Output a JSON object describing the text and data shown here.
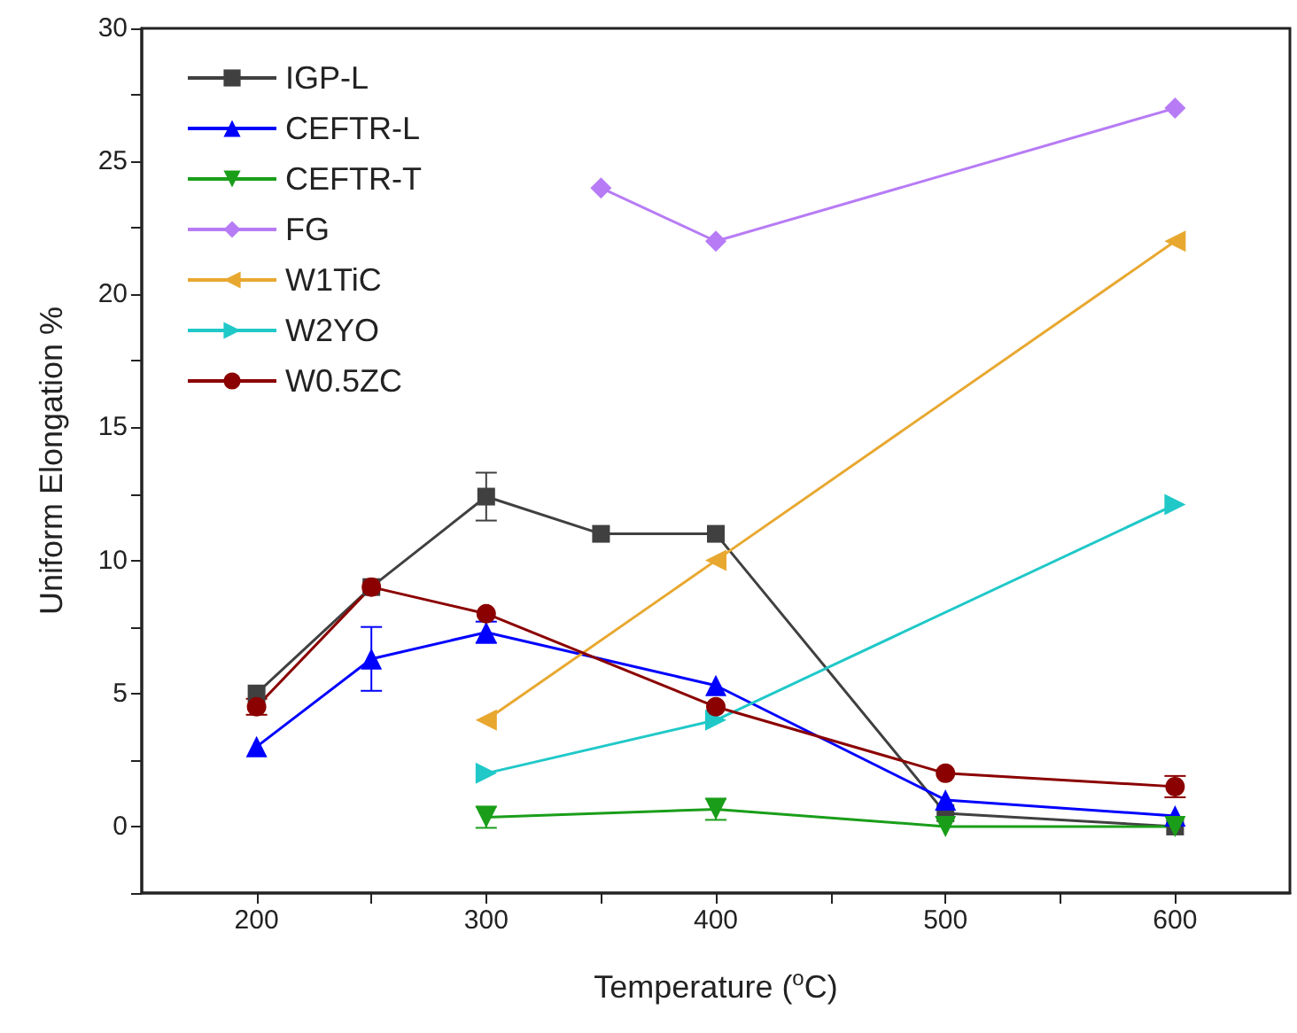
{
  "chart_data": {
    "type": "line",
    "xlabel": "Temperature ($^{o}$C)",
    "ylabel": "Uniform Elongation %",
    "xlim": [
      150,
      650
    ],
    "xticks": [
      200,
      {
        "value": 250,
        "label": null
      },
      300,
      {
        "value": 350,
        "label": null
      },
      400,
      {
        "value": 450,
        "label": null
      },
      500,
      {
        "value": 550,
        "label": null
      },
      600
    ],
    "ylim": [
      -2.5,
      30
    ],
    "yticks": [
      {
        "value": -2.5,
        "label": null
      },
      0,
      {
        "value": 2.5,
        "label": null
      },
      5,
      {
        "value": 7.5,
        "label": null
      },
      10,
      {
        "value": 12.5,
        "label": null
      },
      15,
      {
        "value": 17.5,
        "label": null
      },
      20,
      {
        "value": 22.5,
        "label": null
      },
      25,
      {
        "value": 27.5,
        "label": null
      },
      30
    ],
    "grid": false,
    "legend": "top left",
    "series": [
      {
        "name": "IGP-L",
        "color": "#404040",
        "marker": "square",
        "x": [
          200,
          250,
          300,
          350,
          400,
          500,
          600
        ],
        "values": [
          5,
          9,
          12.4,
          11,
          11,
          0.5,
          0
        ],
        "errors": [
          null,
          null,
          0.9,
          null,
          null,
          null,
          null
        ]
      },
      {
        "name": "CEFTR-L",
        "color": "#0000ff",
        "marker": "triangle",
        "x": [
          200,
          250,
          300,
          400,
          500,
          600
        ],
        "values": [
          3,
          6.3,
          7.3,
          5.3,
          1,
          0.4
        ],
        "errors": [
          null,
          1.2,
          0.4,
          null,
          null,
          null
        ]
      },
      {
        "name": "CEFTR-T",
        "color": "#1a9e1a",
        "marker": "triangle-down",
        "x": [
          300,
          400,
          500,
          600
        ],
        "values": [
          0.35,
          0.65,
          0,
          0
        ],
        "errors": [
          0.4,
          0.4,
          null,
          null
        ]
      },
      {
        "name": "FG",
        "color": "#b77cf5",
        "marker": "diamond",
        "x": [
          350,
          400,
          600
        ],
        "values": [
          24,
          22,
          27
        ]
      },
      {
        "name": "W1TiC",
        "color": "#e8a830",
        "marker": "triangle-left",
        "x": [
          300,
          400,
          600
        ],
        "values": [
          4,
          10,
          22
        ]
      },
      {
        "name": "W2YO",
        "color": "#20c8c8",
        "marker": "triangle-right",
        "x": [
          300,
          400,
          600
        ],
        "values": [
          2,
          4,
          12.1
        ]
      },
      {
        "name": "W0.5ZC",
        "color": "#8b0000",
        "marker": "circle",
        "x": [
          200,
          250,
          300,
          400,
          500,
          600
        ],
        "values": [
          4.5,
          9,
          8,
          4.5,
          2,
          1.5
        ],
        "errors": [
          0.3,
          null,
          null,
          null,
          null,
          0.4
        ]
      }
    ]
  }
}
